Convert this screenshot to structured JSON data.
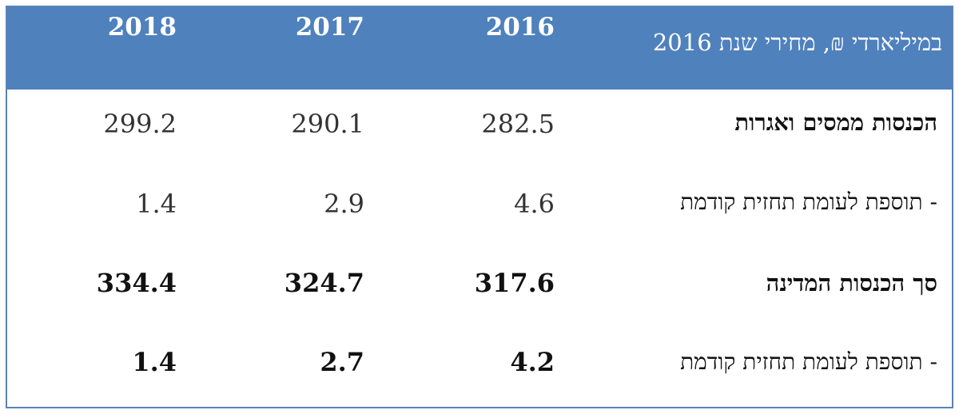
{
  "header": {
    "label": "במיליארדי ₪, מחירי שנת 2016",
    "years": [
      "2016",
      "2017",
      "2018"
    ]
  },
  "rows": [
    {
      "label": "הכנסות ממסים ואגרות",
      "bold": true,
      "values": [
        "282.5",
        "290.1",
        "299.2"
      ],
      "values_bold": false
    },
    {
      "label": "- תוספת לעומת תחזית קודמת",
      "bold": false,
      "values": [
        "4.6",
        "2.9",
        "1.4"
      ],
      "values_bold": false
    },
    {
      "label": "סך הכנסות המדינה",
      "bold": true,
      "values": [
        "317.6",
        "324.7",
        "334.4"
      ],
      "values_bold": true
    },
    {
      "label": "- תוספת לעומת תחזית קודמת",
      "bold": false,
      "values": [
        "4.2",
        "2.7",
        "1.4"
      ],
      "values_bold": true
    }
  ]
}
